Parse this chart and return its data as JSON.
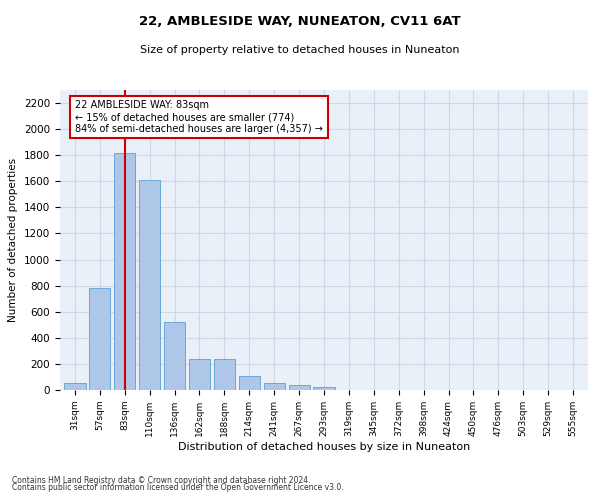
{
  "title1": "22, AMBLESIDE WAY, NUNEATON, CV11 6AT",
  "title2": "Size of property relative to detached houses in Nuneaton",
  "xlabel": "Distribution of detached houses by size in Nuneaton",
  "ylabel": "Number of detached properties",
  "categories": [
    "31sqm",
    "57sqm",
    "83sqm",
    "110sqm",
    "136sqm",
    "162sqm",
    "188sqm",
    "214sqm",
    "241sqm",
    "267sqm",
    "293sqm",
    "319sqm",
    "345sqm",
    "372sqm",
    "398sqm",
    "424sqm",
    "450sqm",
    "476sqm",
    "503sqm",
    "529sqm",
    "555sqm"
  ],
  "values": [
    55,
    780,
    1820,
    1610,
    520,
    235,
    235,
    105,
    55,
    40,
    20,
    0,
    0,
    0,
    0,
    0,
    0,
    0,
    0,
    0,
    0
  ],
  "bar_color": "#aec6e8",
  "bar_edge_color": "#5a9fd4",
  "highlight_index": 2,
  "highlight_line_color": "#cc0000",
  "annotation_line1": "22 AMBLESIDE WAY: 83sqm",
  "annotation_line2": "← 15% of detached houses are smaller (774)",
  "annotation_line3": "84% of semi-detached houses are larger (4,357) →",
  "annotation_box_color": "#ffffff",
  "annotation_box_edge": "#cc0000",
  "ylim": [
    0,
    2300
  ],
  "yticks": [
    0,
    200,
    400,
    600,
    800,
    1000,
    1200,
    1400,
    1600,
    1800,
    2000,
    2200
  ],
  "grid_color": "#d0d8e8",
  "background_color": "#eaf0f8",
  "footer1": "Contains HM Land Registry data © Crown copyright and database right 2024.",
  "footer2": "Contains public sector information licensed under the Open Government Licence v3.0."
}
